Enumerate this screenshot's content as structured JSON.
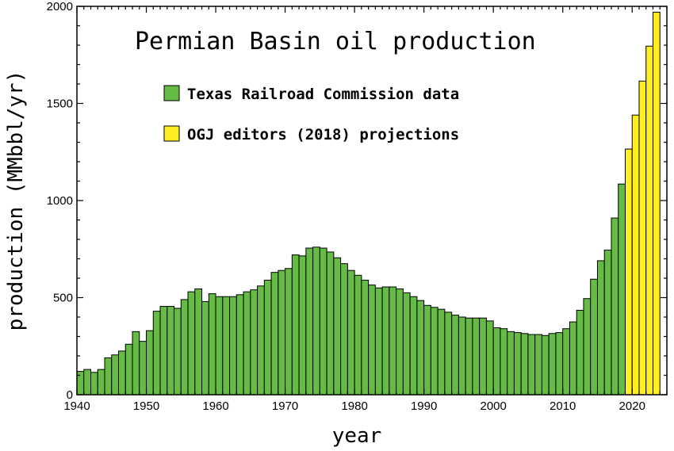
{
  "chart_data": {
    "type": "bar",
    "title": "Permian Basin oil production",
    "xlabel": "year",
    "ylabel": "production (MMbbl/yr)",
    "xlim": [
      1940,
      2025
    ],
    "ylim": [
      0,
      2000
    ],
    "xticks": [
      1940,
      1950,
      1960,
      1970,
      1980,
      1990,
      2000,
      2010,
      2020
    ],
    "yticks": [
      0,
      500,
      1000,
      1500,
      2000
    ],
    "grid": false,
    "legend_position": "top-left",
    "series": [
      {
        "name": "Texas Railroad Commission data",
        "color": "#66bb44",
        "x": [
          1940,
          1941,
          1942,
          1943,
          1944,
          1945,
          1946,
          1947,
          1948,
          1949,
          1950,
          1951,
          1952,
          1953,
          1954,
          1955,
          1956,
          1957,
          1958,
          1959,
          1960,
          1961,
          1962,
          1963,
          1964,
          1965,
          1966,
          1967,
          1968,
          1969,
          1970,
          1971,
          1972,
          1973,
          1974,
          1975,
          1976,
          1977,
          1978,
          1979,
          1980,
          1981,
          1982,
          1983,
          1984,
          1985,
          1986,
          1987,
          1988,
          1989,
          1990,
          1991,
          1992,
          1993,
          1994,
          1995,
          1996,
          1997,
          1998,
          1999,
          2000,
          2001,
          2002,
          2003,
          2004,
          2005,
          2006,
          2007,
          2008,
          2009,
          2010,
          2011,
          2012,
          2013,
          2014,
          2015,
          2016,
          2017,
          2018
        ],
        "values": [
          120,
          130,
          115,
          130,
          190,
          205,
          225,
          260,
          325,
          275,
          330,
          430,
          455,
          455,
          445,
          490,
          530,
          545,
          480,
          520,
          505,
          505,
          505,
          515,
          530,
          540,
          560,
          590,
          630,
          640,
          650,
          720,
          715,
          755,
          760,
          755,
          735,
          705,
          675,
          640,
          615,
          590,
          565,
          550,
          555,
          555,
          545,
          525,
          505,
          485,
          460,
          450,
          440,
          425,
          410,
          400,
          395,
          395,
          395,
          380,
          345,
          340,
          325,
          320,
          315,
          310,
          310,
          305,
          315,
          320,
          340,
          375,
          435,
          495,
          595,
          690,
          745,
          910,
          1085
        ],
        "y_offsets_mm": null
      },
      {
        "name": "OGJ editors (2018) projections",
        "color": "#ffee22",
        "x": [
          2019,
          2020,
          2021,
          2022,
          2023
        ],
        "values": [
          1265,
          1440,
          1615,
          1795,
          1970
        ]
      }
    ]
  }
}
